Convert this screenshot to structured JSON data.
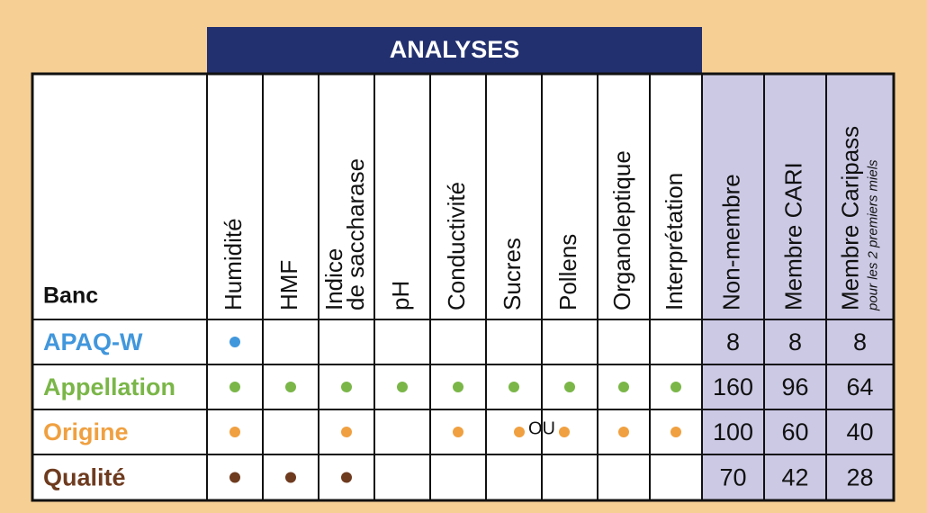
{
  "table": {
    "title": "ANALYSES",
    "corner": "Banc",
    "analyses": [
      [
        "Humidité"
      ],
      [
        "HMF"
      ],
      [
        "Indice",
        "de saccharase"
      ],
      [
        "pH"
      ],
      [
        "Conductivité"
      ],
      [
        "Sucres"
      ],
      [
        "Pollens"
      ],
      [
        "Organoleptique"
      ],
      [
        "Interprétation"
      ]
    ],
    "prices": [
      "Non-membre",
      "Membre CARI",
      "Membre Caripass"
    ],
    "prices_note": "pour les 2 premiers miels",
    "rows": [
      {
        "name": "APAQ-W",
        "color": "#4197dc",
        "marks": [
          true,
          false,
          false,
          false,
          false,
          false,
          false,
          false,
          false
        ],
        "values": [
          8,
          8,
          8
        ]
      },
      {
        "name": "Appellation",
        "color": "#7ab648",
        "marks": [
          true,
          true,
          true,
          true,
          true,
          true,
          true,
          true,
          true
        ],
        "values": [
          160,
          96,
          64
        ]
      },
      {
        "name": "Origine",
        "color": "#f0a040",
        "marks": [
          true,
          false,
          true,
          false,
          true,
          true,
          true,
          true,
          true
        ],
        "values": [
          100,
          60,
          40
        ],
        "note": "OU"
      },
      {
        "name": "Qualité",
        "color": "#6e3b1f",
        "marks": [
          true,
          true,
          true,
          false,
          false,
          false,
          false,
          false,
          false
        ],
        "values": [
          70,
          42,
          28
        ]
      }
    ]
  }
}
